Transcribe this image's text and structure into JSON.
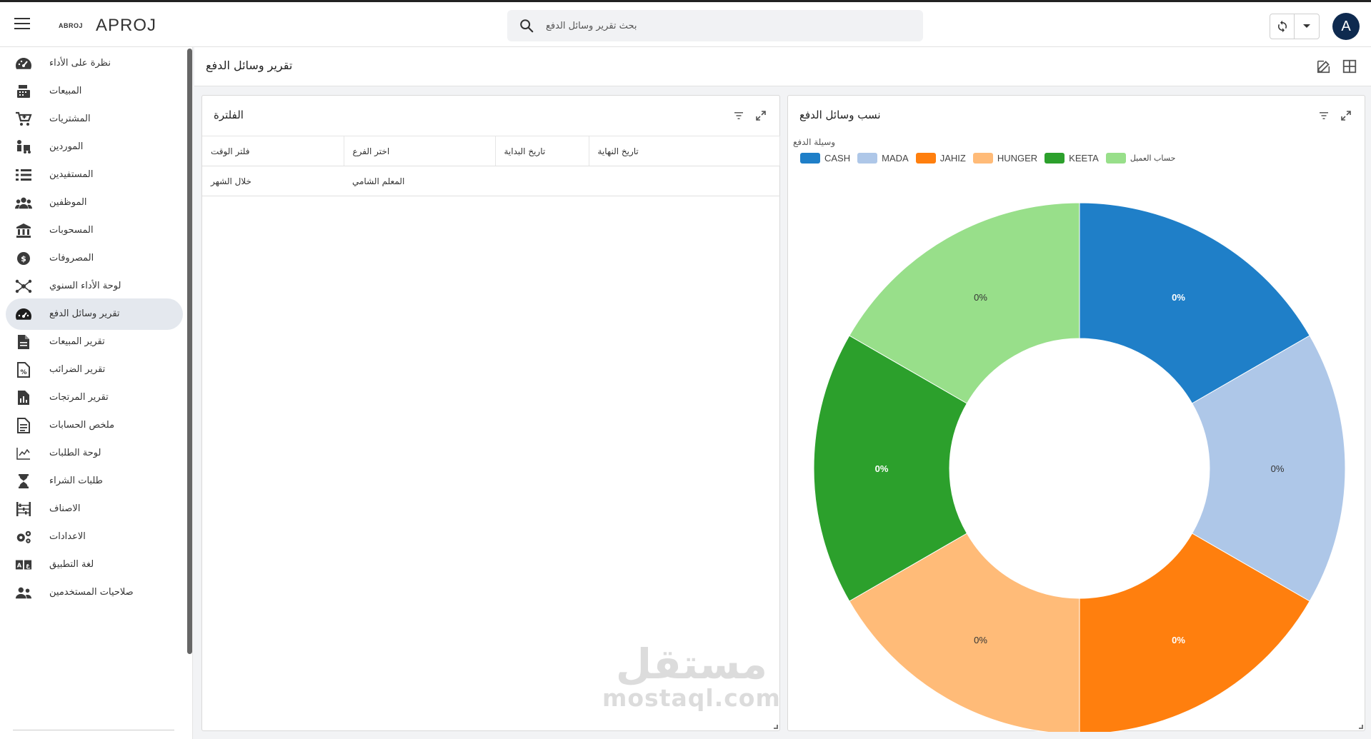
{
  "header": {
    "logo_text": "ABROJ",
    "app_title": "APROJ",
    "search_placeholder": "بحث تقرير وسائل الدفع",
    "avatar_letter": "A"
  },
  "sidebar": {
    "items": [
      {
        "label": "نظرة على الأداء",
        "icon": "speedometer-icon"
      },
      {
        "label": "المبيعات",
        "icon": "cash-register-icon"
      },
      {
        "label": "المشتريات",
        "icon": "cart-icon"
      },
      {
        "label": "الموردين",
        "icon": "truck-person-icon"
      },
      {
        "label": "المستفيدين",
        "icon": "list-icon"
      },
      {
        "label": "الموظفين",
        "icon": "users-icon"
      },
      {
        "label": "المسحوبات",
        "icon": "bank-icon"
      },
      {
        "label": "المصروفات",
        "icon": "coin-gear-icon"
      },
      {
        "label": "لوحة الأداء السنوي",
        "icon": "hub-icon"
      },
      {
        "label": "تقرير وسائل الدفع",
        "icon": "gauge-icon",
        "active": true
      },
      {
        "label": "تقرير المبيعات",
        "icon": "document-icon"
      },
      {
        "label": "تقرير الضرائب",
        "icon": "tax-file-icon"
      },
      {
        "label": "تقرير المرتجات",
        "icon": "chart-file-icon"
      },
      {
        "label": "ملخص الحسابات",
        "icon": "summary-file-icon"
      },
      {
        "label": "لوحة الطلبات",
        "icon": "line-chart-icon"
      },
      {
        "label": "طلبات الشراء",
        "icon": "hourglass-icon"
      },
      {
        "label": "الاصناف",
        "icon": "abacus-icon"
      },
      {
        "label": "الاعدادات",
        "icon": "gears-icon"
      },
      {
        "label": "لغة التطبيق",
        "icon": "translate-icon"
      },
      {
        "label": "صلاحيات المستخدمين",
        "icon": "user-group-icon"
      }
    ]
  },
  "page": {
    "title": "تقرير وسائل الدفع"
  },
  "filter_panel": {
    "title": "الفلترة",
    "columns": [
      "فلتر الوقت",
      "اختر الفرع",
      "تاريخ البداية",
      "تاريخ النهاية"
    ],
    "rows": [
      [
        "خلال الشهر",
        "المعلم الشامي",
        "",
        ""
      ]
    ]
  },
  "chart_panel": {
    "title": "نسب وسائل الدفع",
    "legend_title": "وسيلة الدفع"
  },
  "watermark": {
    "line1": "مستقل",
    "line2": "mostaql.com"
  },
  "chart_data": {
    "type": "pie",
    "donut": true,
    "legend_title": "وسيلة الدفع",
    "categories": [
      "CASH",
      "MADA",
      "JAHIZ",
      "HUNGER",
      "KEETA",
      "حساب العميل"
    ],
    "colors": [
      "#1f7fc8",
      "#aec7e8",
      "#ff7f0e",
      "#ffbb78",
      "#2ca02c",
      "#98df8a"
    ],
    "share_for_drawing": [
      1,
      1,
      1,
      1,
      1,
      1
    ],
    "labels": [
      "0%",
      "0%",
      "0%",
      "0%",
      "0%",
      "0%"
    ],
    "legend_placement": "top-left"
  }
}
